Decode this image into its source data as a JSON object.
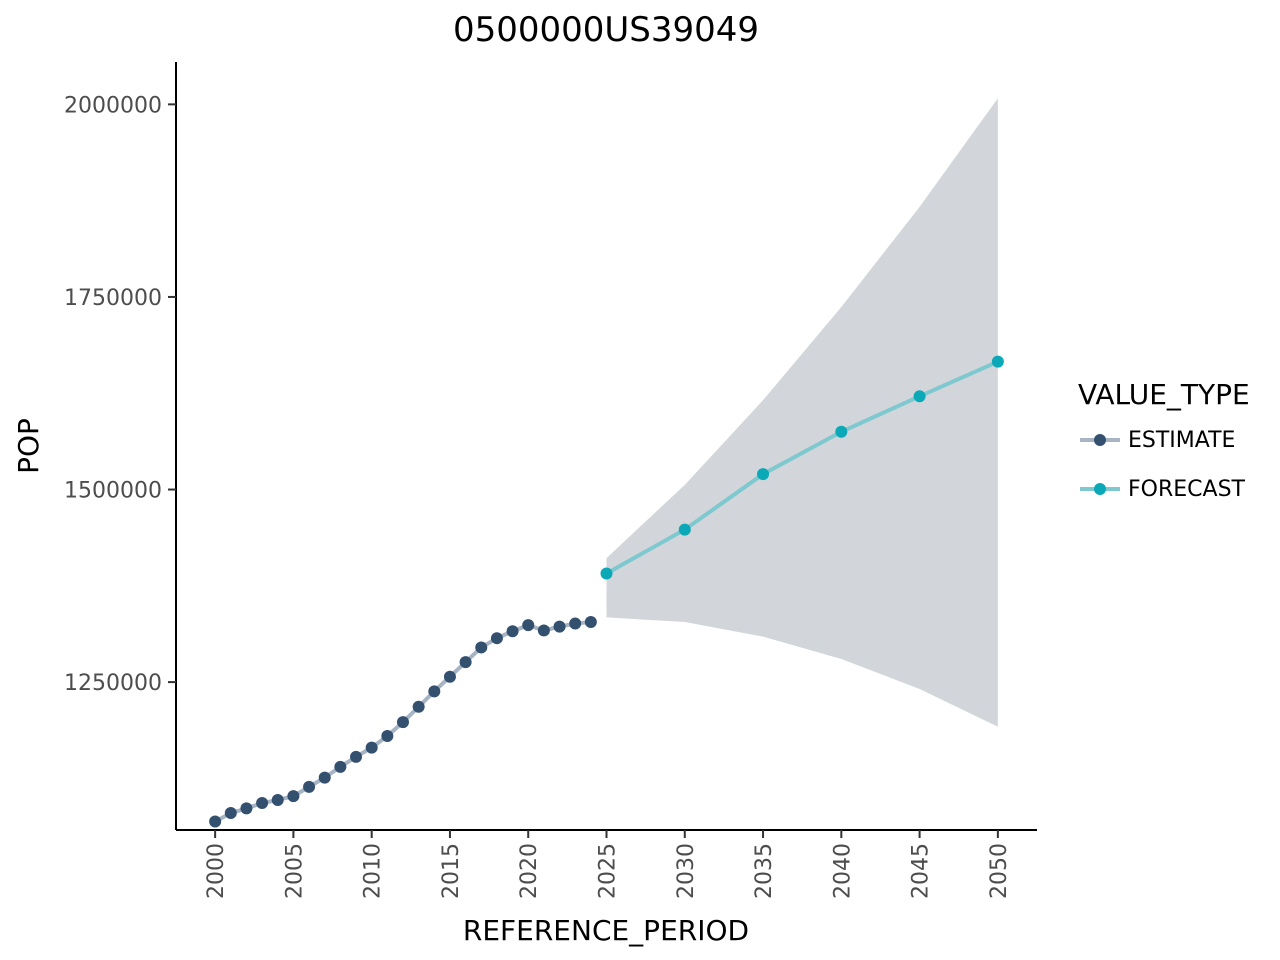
{
  "chart_data": {
    "type": "line",
    "title": "0500000US39049",
    "xlabel": "REFERENCE_PERIOD",
    "ylabel": "POP",
    "xlim": [
      1997.5,
      2052.5
    ],
    "ylim": [
      1058000,
      2055000
    ],
    "x_ticks": [
      "2000",
      "2005",
      "2010",
      "2015",
      "2020",
      "2025",
      "2030",
      "2035",
      "2040",
      "2045",
      "2050"
    ],
    "y_ticks": [
      "1250000",
      "1500000",
      "1750000",
      "2000000"
    ],
    "grid": false,
    "legend": {
      "title": "VALUE_TYPE",
      "placement": "right",
      "entries": [
        "ESTIMATE",
        "FORECAST"
      ]
    },
    "series": [
      {
        "name": "ESTIMATE",
        "color": "#34506f",
        "line_color": "#a6b4c3",
        "x": [
          2000,
          2001,
          2002,
          2003,
          2004,
          2005,
          2006,
          2007,
          2008,
          2009,
          2010,
          2011,
          2012,
          2013,
          2014,
          2015,
          2016,
          2017,
          2018,
          2019,
          2020,
          2021,
          2022,
          2023,
          2024
        ],
        "y": [
          1069000,
          1080000,
          1086000,
          1093000,
          1097000,
          1102000,
          1114000,
          1126000,
          1140000,
          1153000,
          1165000,
          1180000,
          1198000,
          1218000,
          1238000,
          1257000,
          1276000,
          1295000,
          1307000,
          1316000,
          1324000,
          1317000,
          1322000,
          1326000,
          1328000
        ]
      },
      {
        "name": "FORECAST",
        "color": "#0ba9b7",
        "line_color": "#7ec8cf",
        "x": [
          2025,
          2030,
          2035,
          2040,
          2045,
          2050
        ],
        "y": [
          1391000,
          1448000,
          1520000,
          1575000,
          1621000,
          1666000
        ]
      }
    ],
    "band": {
      "color": "#d2d6da",
      "x": [
        2025,
        2030,
        2035,
        2040,
        2045,
        2050
      ],
      "lower": [
        1334000,
        1328000,
        1309000,
        1280000,
        1241000,
        1192000
      ],
      "upper": [
        1411000,
        1506000,
        1616000,
        1737000,
        1867000,
        2008000
      ]
    }
  }
}
